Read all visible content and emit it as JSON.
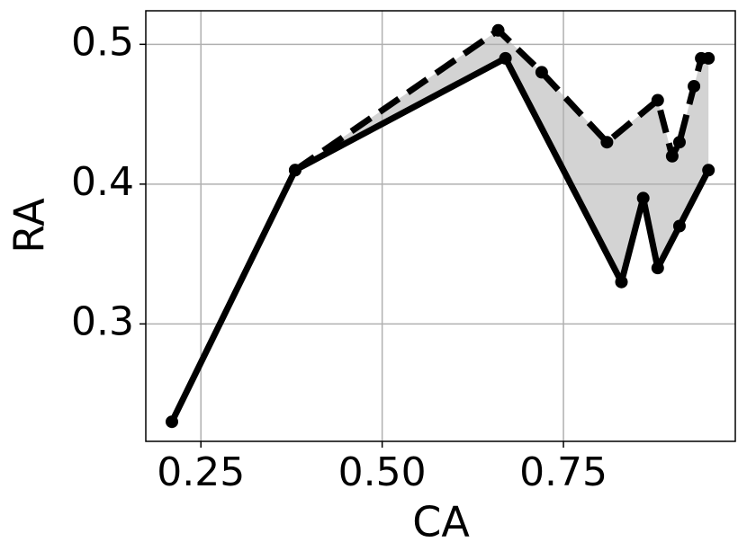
{
  "chart_data": {
    "type": "line",
    "x_label": "CA",
    "y_label": "RA",
    "series": [
      {
        "color": "#000000",
        "style": "solid",
        "x": [
          0.21,
          0.38,
          0.67,
          0.83,
          0.86,
          0.88,
          0.91,
          0.95
        ],
        "values": [
          0.23,
          0.41,
          0.49,
          0.33,
          0.39,
          0.34,
          0.37,
          0.41
        ]
      },
      {
        "color": "#000000",
        "style": "dashed",
        "x": [
          0.38,
          0.66,
          0.72,
          0.81,
          0.88,
          0.9,
          0.91,
          0.93,
          0.94,
          0.95
        ],
        "values": [
          0.41,
          0.51,
          0.48,
          0.43,
          0.46,
          0.42,
          0.43,
          0.47,
          0.49,
          0.49
        ]
      }
    ],
    "fill_between": true,
    "fill_color": "#d3d3d3",
    "xlim": [
      0.174,
      0.987
    ],
    "ylim": [
      0.216,
      0.524
    ],
    "xticks": [
      0.25,
      {
        "value": 0.5,
        "label": "0.50"
      },
      0.75
    ],
    "yticks": [
      0.3,
      0.4,
      0.5
    ],
    "grid": true
  }
}
